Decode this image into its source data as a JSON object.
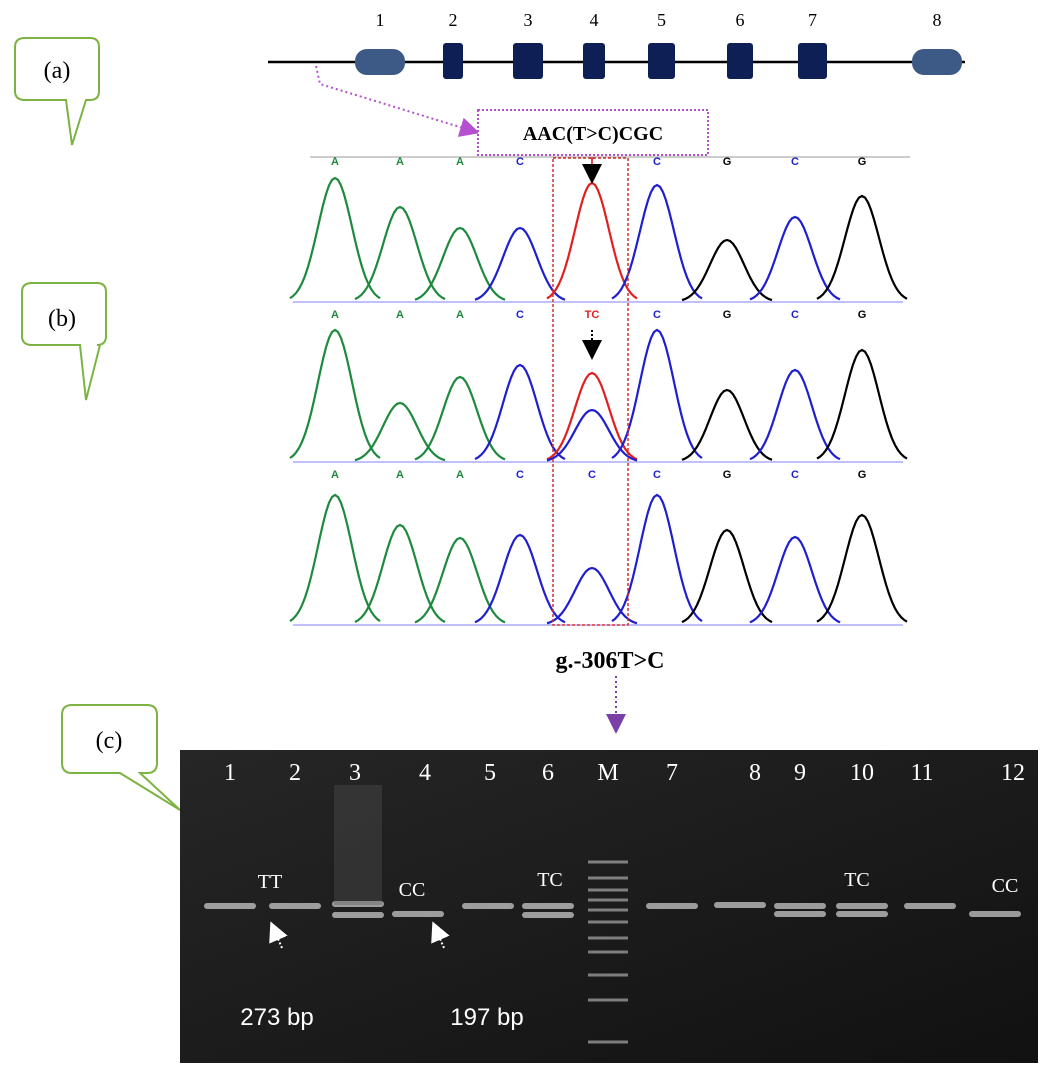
{
  "callouts": [
    "(a)",
    "(b)",
    "(c)"
  ],
  "gene": {
    "exons": [
      "1",
      "2",
      "3",
      "4",
      "5",
      "6",
      "7",
      "8"
    ]
  },
  "sequence_label": "AAC(T>C)CGC",
  "chromatograms": [
    {
      "bases": [
        "A",
        "A",
        "A",
        "C",
        "T",
        "C",
        "G",
        "C",
        "G"
      ]
    },
    {
      "bases": [
        "A",
        "A",
        "A",
        "C",
        "TC",
        "C",
        "G",
        "C",
        "G"
      ]
    },
    {
      "bases": [
        "A",
        "A",
        "A",
        "C",
        "C",
        "C",
        "G",
        "C",
        "G"
      ]
    }
  ],
  "variant": "g.-306T>C",
  "gel": {
    "lanes": [
      "1",
      "2",
      "3",
      "4",
      "5",
      "6",
      "M",
      "7",
      "8",
      "9",
      "10",
      "11",
      "12"
    ],
    "genotypes": [
      "TT",
      "CC",
      "TC",
      "TC",
      "CC"
    ],
    "sizes": [
      "273 bp",
      "197 bp"
    ]
  }
}
